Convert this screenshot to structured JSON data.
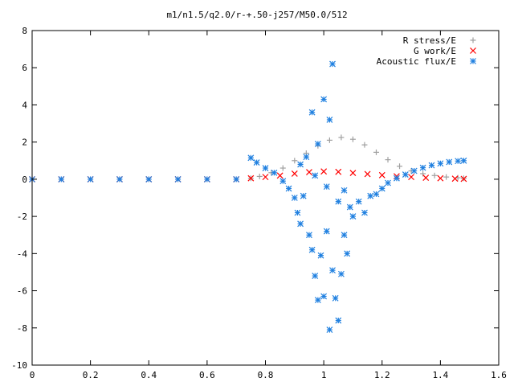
{
  "chart_data": {
    "type": "scatter",
    "title": "m1/n1.5/q2.0/r-+.50-j257/M50.0/512",
    "xlabel": "",
    "ylabel": "",
    "xlim": [
      0,
      1.6
    ],
    "ylim": [
      -10,
      8
    ],
    "x_ticks": [
      "0",
      "0.2",
      "0.4",
      "0.6",
      "0.8",
      "1",
      "1.2",
      "1.4",
      "1.6"
    ],
    "y_ticks": [
      "8",
      "6",
      "4",
      "2",
      "0",
      "-2",
      "-4",
      "-6",
      "-8",
      "-10"
    ],
    "grid": false,
    "legend_position": "top-right",
    "series": [
      {
        "name": "R stress/E",
        "marker": "+",
        "color": "#a0a0a0",
        "points": [
          [
            0.75,
            0.05
          ],
          [
            0.78,
            0.15
          ],
          [
            0.82,
            0.35
          ],
          [
            0.86,
            0.6
          ],
          [
            0.9,
            1.0
          ],
          [
            0.94,
            1.4
          ],
          [
            0.98,
            1.8
          ],
          [
            1.02,
            2.1
          ],
          [
            1.06,
            2.25
          ],
          [
            1.1,
            2.15
          ],
          [
            1.14,
            1.85
          ],
          [
            1.18,
            1.45
          ],
          [
            1.22,
            1.05
          ],
          [
            1.26,
            0.7
          ],
          [
            1.3,
            0.45
          ],
          [
            1.34,
            0.3
          ],
          [
            1.38,
            0.2
          ],
          [
            1.42,
            0.12
          ],
          [
            1.46,
            0.08
          ],
          [
            1.48,
            0.05
          ]
        ]
      },
      {
        "name": "G work/E",
        "marker": "x",
        "color": "#ff0000",
        "points": [
          [
            0.0,
            0.0
          ],
          [
            0.1,
            0.0
          ],
          [
            0.2,
            0.0
          ],
          [
            0.3,
            0.0
          ],
          [
            0.4,
            0.0
          ],
          [
            0.5,
            0.0
          ],
          [
            0.6,
            0.0
          ],
          [
            0.7,
            0.0
          ],
          [
            0.75,
            0.05
          ],
          [
            0.8,
            0.12
          ],
          [
            0.85,
            0.2
          ],
          [
            0.9,
            0.3
          ],
          [
            0.95,
            0.38
          ],
          [
            1.0,
            0.42
          ],
          [
            1.05,
            0.4
          ],
          [
            1.1,
            0.34
          ],
          [
            1.15,
            0.28
          ],
          [
            1.2,
            0.22
          ],
          [
            1.25,
            0.16
          ],
          [
            1.3,
            0.12
          ],
          [
            1.35,
            0.08
          ],
          [
            1.4,
            0.05
          ],
          [
            1.45,
            0.03
          ],
          [
            1.48,
            0.02
          ]
        ]
      },
      {
        "name": "Acoustic flux/E",
        "marker": "*",
        "color": "#2080e0",
        "points": [
          [
            0.0,
            0.0
          ],
          [
            0.1,
            0.0
          ],
          [
            0.2,
            0.0
          ],
          [
            0.3,
            0.0
          ],
          [
            0.4,
            0.0
          ],
          [
            0.5,
            0.0
          ],
          [
            0.6,
            0.0
          ],
          [
            0.7,
            0.0
          ],
          [
            0.75,
            1.15
          ],
          [
            0.77,
            0.9
          ],
          [
            0.8,
            0.6
          ],
          [
            0.83,
            0.35
          ],
          [
            0.86,
            -0.1
          ],
          [
            0.88,
            -0.5
          ],
          [
            0.9,
            -1.0
          ],
          [
            0.91,
            -1.8
          ],
          [
            0.92,
            -2.4
          ],
          [
            0.93,
            -0.9
          ],
          [
            0.95,
            -3.0
          ],
          [
            0.96,
            -3.8
          ],
          [
            0.97,
            -5.2
          ],
          [
            0.98,
            -6.5
          ],
          [
            0.99,
            -4.1
          ],
          [
            1.0,
            -6.3
          ],
          [
            1.01,
            -2.8
          ],
          [
            1.02,
            -8.1
          ],
          [
            1.03,
            -4.9
          ],
          [
            1.04,
            -6.4
          ],
          [
            1.05,
            -7.6
          ],
          [
            1.06,
            -5.1
          ],
          [
            1.07,
            -3.0
          ],
          [
            1.08,
            -4.0
          ],
          [
            1.09,
            -1.5
          ],
          [
            1.1,
            -2.0
          ],
          [
            1.12,
            -1.2
          ],
          [
            1.14,
            -1.8
          ],
          [
            1.16,
            -0.9
          ],
          [
            1.18,
            -0.8
          ],
          [
            1.2,
            -0.5
          ],
          [
            1.22,
            -0.2
          ],
          [
            1.25,
            0.05
          ],
          [
            1.28,
            0.25
          ],
          [
            1.31,
            0.45
          ],
          [
            1.34,
            0.62
          ],
          [
            1.37,
            0.75
          ],
          [
            1.4,
            0.85
          ],
          [
            1.43,
            0.93
          ],
          [
            1.46,
            0.98
          ],
          [
            1.48,
            1.0
          ],
          [
            0.96,
            3.6
          ],
          [
            0.98,
            1.9
          ],
          [
            1.0,
            4.3
          ],
          [
            1.02,
            3.2
          ],
          [
            1.03,
            6.2
          ],
          [
            0.94,
            1.2
          ],
          [
            0.92,
            0.8
          ],
          [
            0.97,
            0.2
          ],
          [
            1.01,
            -0.4
          ],
          [
            1.05,
            -1.2
          ],
          [
            1.07,
            -0.6
          ]
        ]
      }
    ]
  }
}
